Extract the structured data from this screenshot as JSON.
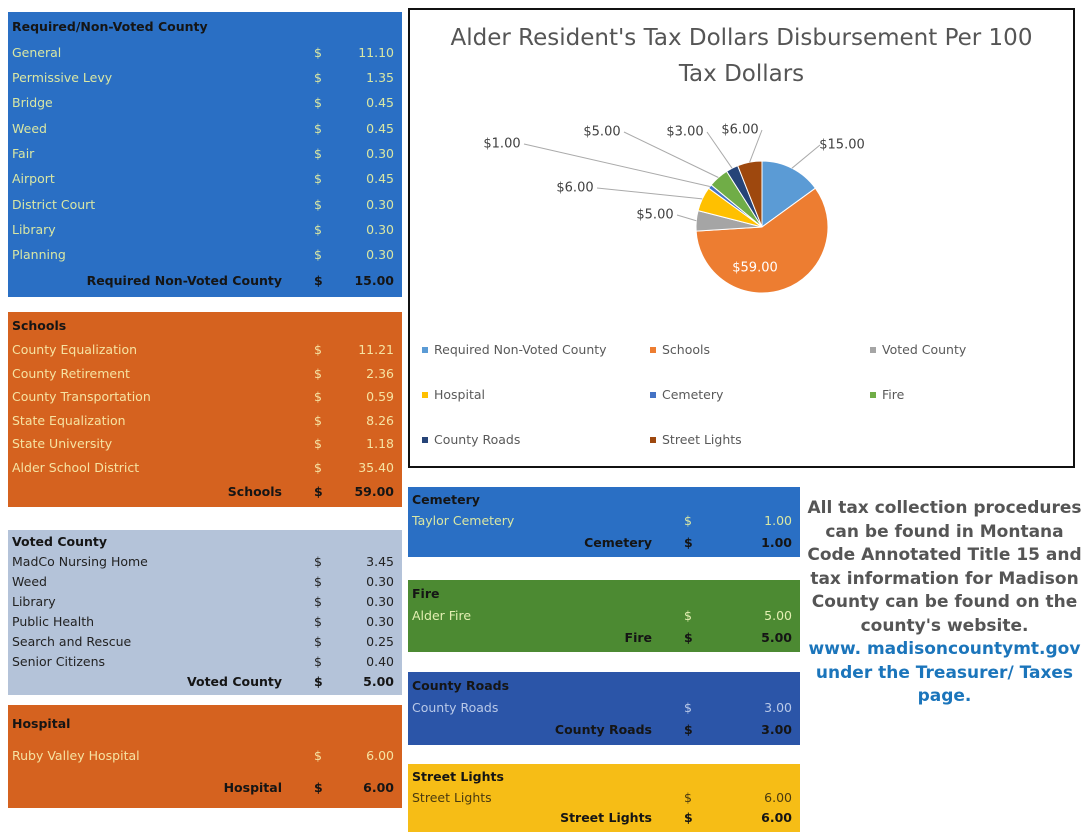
{
  "tables": [
    {
      "title": "Required/Non-Voted County",
      "rows": [
        [
          "General",
          "$",
          "11.10"
        ],
        [
          "Permissive Levy",
          "$",
          "1.35"
        ],
        [
          "Bridge",
          "$",
          "0.45"
        ],
        [
          "Weed",
          "$",
          "0.45"
        ],
        [
          "Fair",
          "$",
          "0.30"
        ],
        [
          "Airport",
          "$",
          "0.45"
        ],
        [
          "District Court",
          "$",
          "0.30"
        ],
        [
          "Library",
          "$",
          "0.30"
        ],
        [
          "Planning",
          "$",
          "0.30"
        ]
      ],
      "total": [
        "Required Non-Voted County",
        "$",
        "15.00"
      ]
    },
    {
      "title": "Schools",
      "rows": [
        [
          "County Equalization",
          "$",
          "11.21"
        ],
        [
          "County Retirement",
          "$",
          "2.36"
        ],
        [
          "County Transportation",
          "$",
          "0.59"
        ],
        [
          "State Equalization",
          "$",
          "8.26"
        ],
        [
          "State University",
          "$",
          "1.18"
        ],
        [
          "Alder School District",
          "$",
          "35.40"
        ]
      ],
      "total": [
        "Schools",
        "$",
        "59.00"
      ]
    },
    {
      "title": "Voted County",
      "rows": [
        [
          "MadCo Nursing Home",
          "$",
          "3.45"
        ],
        [
          "Weed",
          "$",
          "0.30"
        ],
        [
          "Library",
          "$",
          "0.30"
        ],
        [
          "Public Health",
          "$",
          "0.30"
        ],
        [
          "Search and Rescue",
          "$",
          "0.25"
        ],
        [
          "Senior Citizens",
          "$",
          "0.40"
        ]
      ],
      "total": [
        "Voted County",
        "$",
        "5.00"
      ]
    },
    {
      "title": "Hospital",
      "rows": [
        [
          "Ruby Valley Hospital",
          "$",
          "6.00"
        ]
      ],
      "total": [
        "Hospital",
        "$",
        "6.00"
      ]
    },
    {
      "title": "Cemetery",
      "rows": [
        [
          "Taylor Cemetery",
          "$",
          "1.00"
        ]
      ],
      "total": [
        "Cemetery",
        "$",
        "1.00"
      ]
    },
    {
      "title": "Fire",
      "rows": [
        [
          "Alder Fire",
          "$",
          "5.00"
        ]
      ],
      "total": [
        "Fire",
        "$",
        "5.00"
      ]
    },
    {
      "title": "County Roads",
      "rows": [
        [
          "County Roads",
          "$",
          "3.00"
        ]
      ],
      "total": [
        "County Roads",
        "$",
        "3.00"
      ]
    },
    {
      "title": "Street Lights",
      "rows": [
        [
          "Street Lights",
          "$",
          "6.00"
        ]
      ],
      "total": [
        "Street Lights",
        "$",
        "6.00"
      ]
    }
  ],
  "chart_data": {
    "type": "pie",
    "title": "Alder Resident's Tax Dollars Disbursement Per 100 Tax Dollars",
    "categories": [
      "Required Non-Voted County",
      "Schools",
      "Voted County",
      "Hospital",
      "Cemetery",
      "Fire",
      "County Roads",
      "Street Lights"
    ],
    "values": [
      15,
      59,
      5,
      6,
      1,
      5,
      3,
      6
    ],
    "value_labels": [
      "$15.00",
      "$59.00",
      "$5.00",
      "$6.00",
      "$1.00",
      "$5.00",
      "$3.00",
      "$6.00"
    ],
    "colors": [
      "#5b9bd5",
      "#ed7d31",
      "#a5a5a5",
      "#ffc000",
      "#4472c4",
      "#70ad47",
      "#264478",
      "#9e480e"
    ],
    "legend": "bottom"
  },
  "note": {
    "text": "All tax collection procedures can be found in Montana Code Annotated Title 15 and tax information for Madison County can be found on the county's website.",
    "link": "www. madisoncountymt.gov",
    "link_suffix": "under the Treasurer/ Taxes page."
  }
}
